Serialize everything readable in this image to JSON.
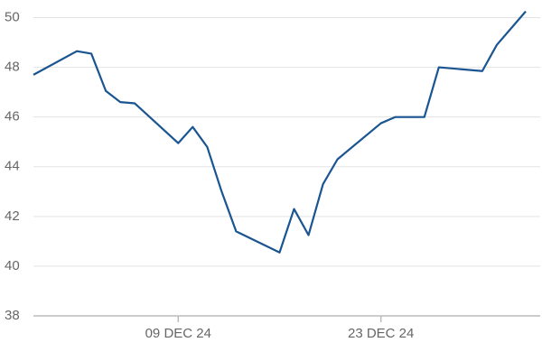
{
  "chart_data": {
    "type": "line",
    "x": [
      "2024-11-29",
      "2024-12-02",
      "2024-12-03",
      "2024-12-04",
      "2024-12-05",
      "2024-12-06",
      "2024-12-09",
      "2024-12-10",
      "2024-12-11",
      "2024-12-12",
      "2024-12-13",
      "2024-12-16",
      "2024-12-17",
      "2024-12-18",
      "2024-12-19",
      "2024-12-20",
      "2024-12-23",
      "2024-12-24",
      "2024-12-26",
      "2024-12-27",
      "2024-12-30",
      "2024-12-31",
      "2025-01-02"
    ],
    "series": [
      {
        "color": "#1a5592",
        "values": [
          47.7,
          48.65,
          48.55,
          47.05,
          46.6,
          46.55,
          44.95,
          45.6,
          44.8,
          43.0,
          41.4,
          40.55,
          42.3,
          41.25,
          43.3,
          44.3,
          45.75,
          46.0,
          46.0,
          48.0,
          47.85,
          48.9,
          50.25
        ]
      }
    ],
    "xlim": [
      "2024-11-29",
      "2025-01-03"
    ],
    "xticks": [
      {
        "value": "2024-12-09",
        "label": "09 DEC 24"
      },
      {
        "value": "2024-12-23",
        "label": "23 DEC 24"
      }
    ],
    "ylim": [
      38,
      50.2
    ],
    "yticks": [
      38,
      40,
      42,
      44,
      46,
      48,
      50
    ],
    "grid": true
  }
}
